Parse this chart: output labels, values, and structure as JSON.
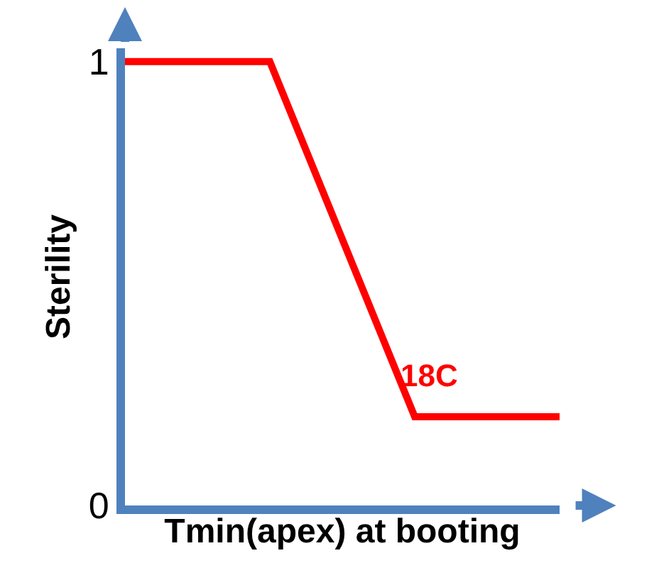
{
  "chart_data": {
    "type": "line",
    "xlabel": "Tmin(apex) at booting",
    "ylabel": "Sterility",
    "categories": [
      null,
      null,
      null,
      null
    ],
    "series": [
      {
        "color": "#ff0000",
        "values": [
          1,
          1,
          0.2,
          0.2
        ]
      }
    ],
    "ylim": [
      0,
      1.03
    ],
    "yticks": [
      0,
      1
    ],
    "tick_labels": "y",
    "marker": "none",
    "line_style": "solid",
    "annotations": [
      {
        "text": "18C",
        "y": 0.2
      }
    ]
  }
}
